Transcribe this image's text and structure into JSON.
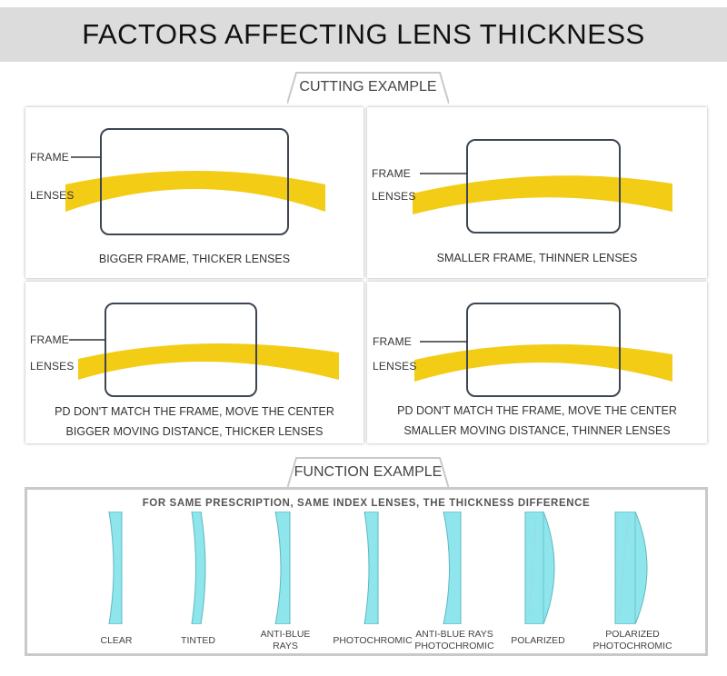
{
  "header": {
    "title": "FACTORS AFFECTING LENS THICKNESS"
  },
  "cutting": {
    "tab_label": "CUTTING EXAMPLE",
    "panels": [
      {
        "frame_label": "FRAME",
        "lenses_label": "LENSES",
        "caption_line1": "BIGGER FRAME, THICKER LENSES",
        "caption_line2": ""
      },
      {
        "frame_label": "FRAME",
        "lenses_label": "LENSES",
        "caption_line1": "SMALLER FRAME, THINNER LENSES",
        "caption_line2": ""
      },
      {
        "frame_label": "FRAME",
        "lenses_label": "LENSES",
        "caption_line1": "PD DON'T MATCH THE FRAME, MOVE THE CENTER",
        "caption_line2": "BIGGER MOVING DISTANCE, THICKER LENSES"
      },
      {
        "frame_label": "FRAME",
        "lenses_label": "LENSES",
        "caption_line1": "PD DON'T MATCH THE FRAME, MOVE THE CENTER",
        "caption_line2": "SMALLER MOVING DISTANCE, THINNER LENSES"
      }
    ],
    "colors": {
      "frame": "#3d4654",
      "lens": "#f3cc16",
      "leader": "#333333"
    }
  },
  "function": {
    "tab_label": "FUNCTION EXAMPLE",
    "heading": "FOR SAME PRESCRIPTION, SAME INDEX LENSES, THE THICKNESS DIFFERENCE",
    "lens_color": "#8ee6ec",
    "lenses": [
      {
        "label_line1": "CLEAR",
        "label_line2": ""
      },
      {
        "label_line1": "TINTED",
        "label_line2": ""
      },
      {
        "label_line1": "ANTI-BLUE",
        "label_line2": "RAYS"
      },
      {
        "label_line1": "PHOTOCHROMIC",
        "label_line2": ""
      },
      {
        "label_line1": "ANTI-BLUE RAYS",
        "label_line2": "PHOTOCHROMIC"
      },
      {
        "label_line1": "POLARIZED",
        "label_line2": ""
      },
      {
        "label_line1": "POLARIZED",
        "label_line2": "PHOTOCHROMIC"
      }
    ]
  }
}
